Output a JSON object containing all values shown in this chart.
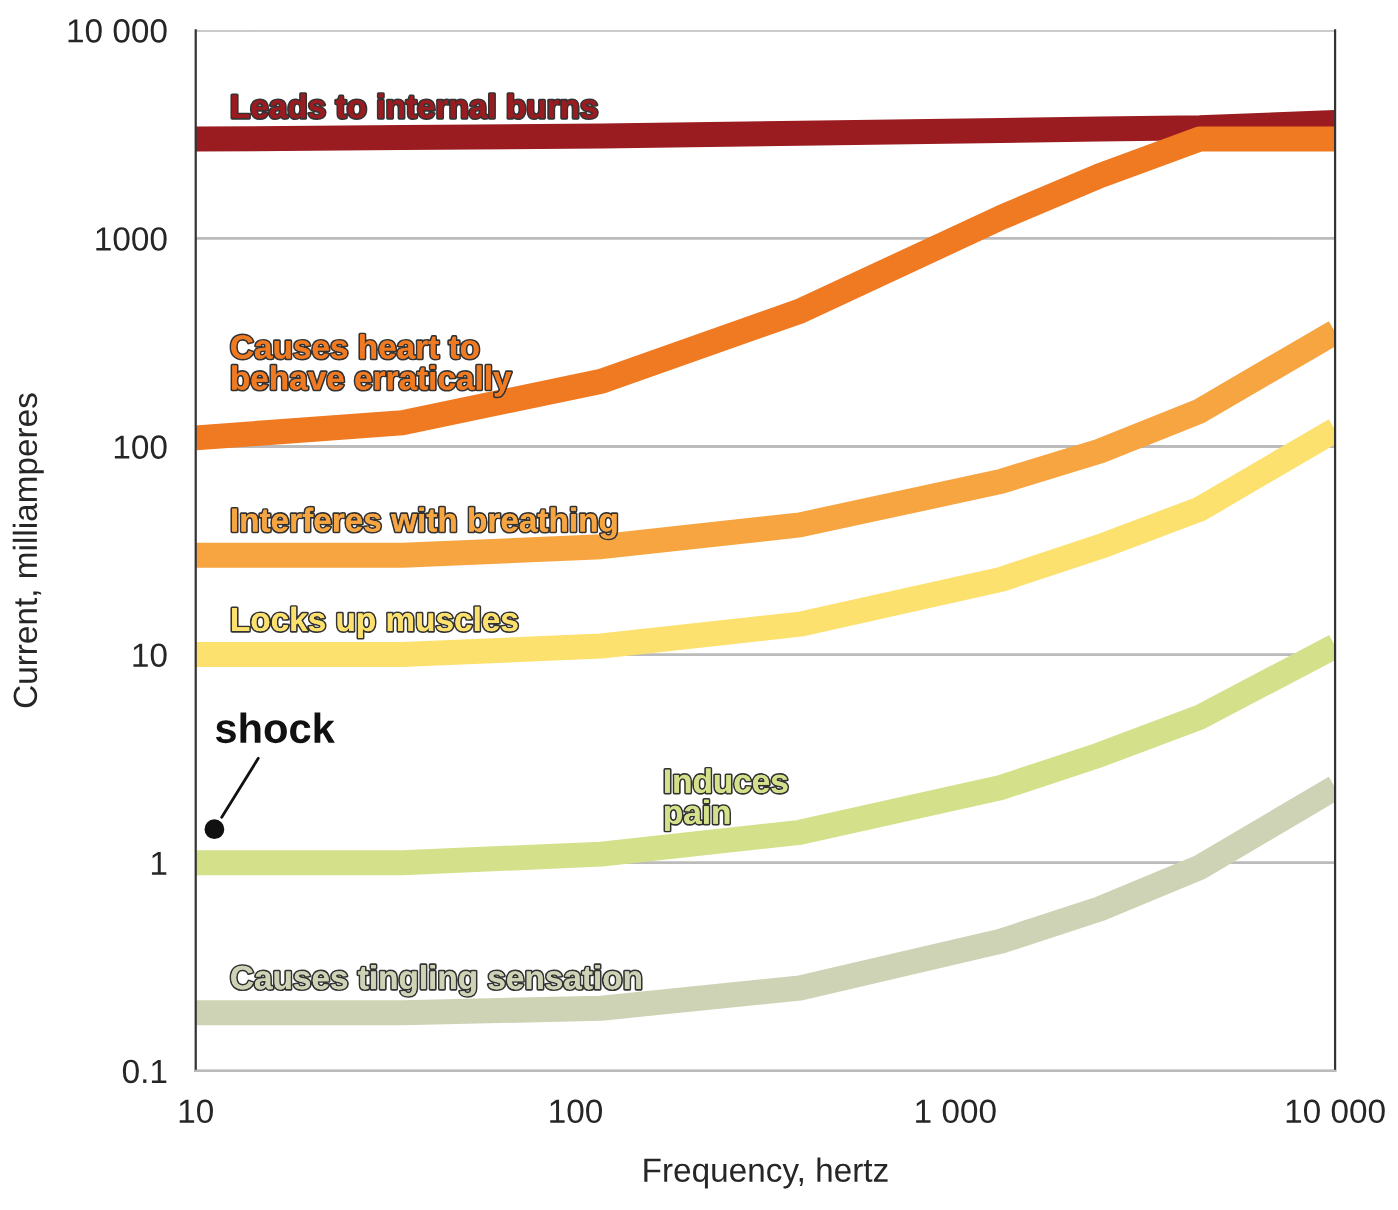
{
  "chart_data": {
    "type": "line",
    "xlabel": "Frequency, hertz",
    "ylabel": "Current, milliamperes",
    "log": "xy",
    "xlim": [
      10,
      10000
    ],
    "ylim": [
      0.1,
      10000
    ],
    "xticks": [
      10,
      100,
      {
        "value": 1000,
        "label": "1 000"
      },
      {
        "value": 10000,
        "label": "10 000"
      }
    ],
    "yticks": [
      0.1,
      1,
      10,
      100,
      1000,
      {
        "value": 10000,
        "label": "10 000"
      }
    ],
    "grid": "y",
    "marker": "none",
    "line_style": "solid",
    "x": [
      10,
      35,
      117,
      390,
      1320,
      2400,
      4400,
      10000
    ],
    "series": [
      {
        "name": "Leads to internal burns",
        "color": "#9b1c20",
        "values": [
          3000,
          3050,
          3100,
          3200,
          3300,
          3350,
          3400,
          3600
        ]
      },
      {
        "name": "Causes heart to\nbehave erratically",
        "color": "#ef7a22",
        "values": [
          110,
          130,
          206,
          447,
          1260,
          2000,
          3000,
          3000
        ]
      },
      {
        "name": "Interferes with breathing",
        "color": "#f7a541",
        "values": [
          30,
          30,
          33,
          42,
          68,
          95,
          148,
          355
        ]
      },
      {
        "name": "Locks up muscles",
        "color": "#fde16e",
        "values": [
          10,
          10,
          11,
          14,
          23,
          33,
          50,
          120
        ]
      },
      {
        "name": "Induces\npain",
        "color": "#d4e08a",
        "values": [
          1,
          1,
          1.1,
          1.4,
          2.3,
          3.3,
          5,
          11
        ]
      },
      {
        "name": "Causes tingling sensation",
        "color": "#cfd3b5",
        "values": [
          0.19,
          0.19,
          0.2,
          0.25,
          0.42,
          0.6,
          0.95,
          2.3
        ]
      },
      {
        "type": "scatter",
        "marker": "circle",
        "name": "shock",
        "color": "#111111",
        "x": [
          11.2
        ],
        "values": [
          1.45
        ]
      }
    ]
  }
}
